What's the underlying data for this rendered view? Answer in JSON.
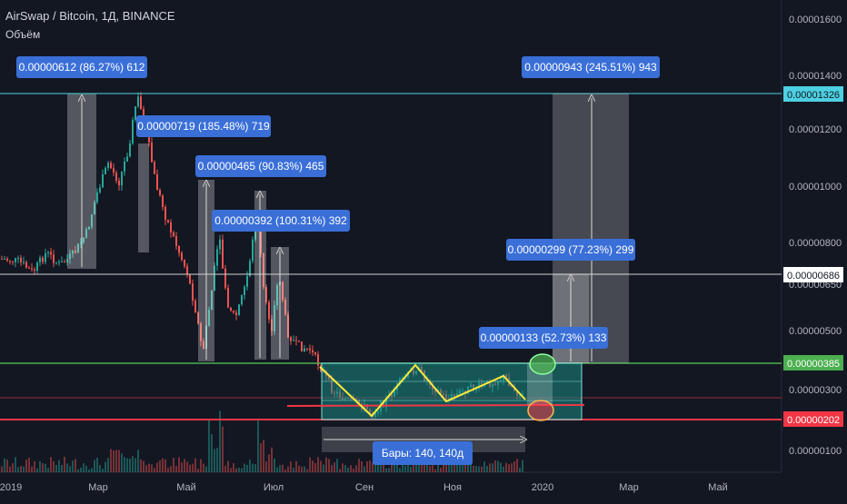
{
  "header": {
    "title": "AirSwap / Bitcoin, 1Д, BINANCE",
    "subtitle": "Объём"
  },
  "colors": {
    "background": "#131722",
    "up": "#26a69a",
    "down": "#ef5350",
    "label_box": "#3a6fd8",
    "cyan_line": "#4dd0e1",
    "green_line": "#4caf50",
    "red_line": "#f23645",
    "pattern": "#ffeb3b",
    "zone": "#1a8a84"
  },
  "chart_data": {
    "type": "candlestick",
    "title": "AirSwap / Bitcoin, 1Д, BINANCE",
    "ylim": [
      1e-07,
      1.6e-06
    ],
    "y_scale": "log",
    "y_ticks": [
      "0.00001600",
      "0.00001400",
      "0.00001200",
      "0.00001000",
      "0.00000800",
      "0.00000650",
      "0.00000500",
      "0.00000300",
      "0.00000100"
    ],
    "x_ticks": [
      "2019",
      "Мар",
      "Май",
      "Июл",
      "Сен",
      "Ноя",
      "2020",
      "Мар",
      "Май"
    ],
    "price_levels": [
      {
        "value": "0.00001326",
        "color": "#4dd0e1"
      },
      {
        "value": "0.00000686",
        "color": "#ffffff"
      },
      {
        "value": "0.00000385",
        "color": "#4caf50"
      },
      {
        "value": "0.00000202",
        "color": "#f23645"
      }
    ],
    "measurements": [
      {
        "text": "0.00000612 (86.27%) 612"
      },
      {
        "text": "0.00000719 (185.48%) 719"
      },
      {
        "text": "0.00000465 (90.83%) 465"
      },
      {
        "text": "0.00000392 (100.31%) 392"
      },
      {
        "text": "0.00000943 (245.51%) 943"
      },
      {
        "text": "0.00000299 (77.23%) 299"
      },
      {
        "text": "0.00000133 (52.73%) 133"
      }
    ],
    "range_label": "Бары: 140, 140д"
  }
}
